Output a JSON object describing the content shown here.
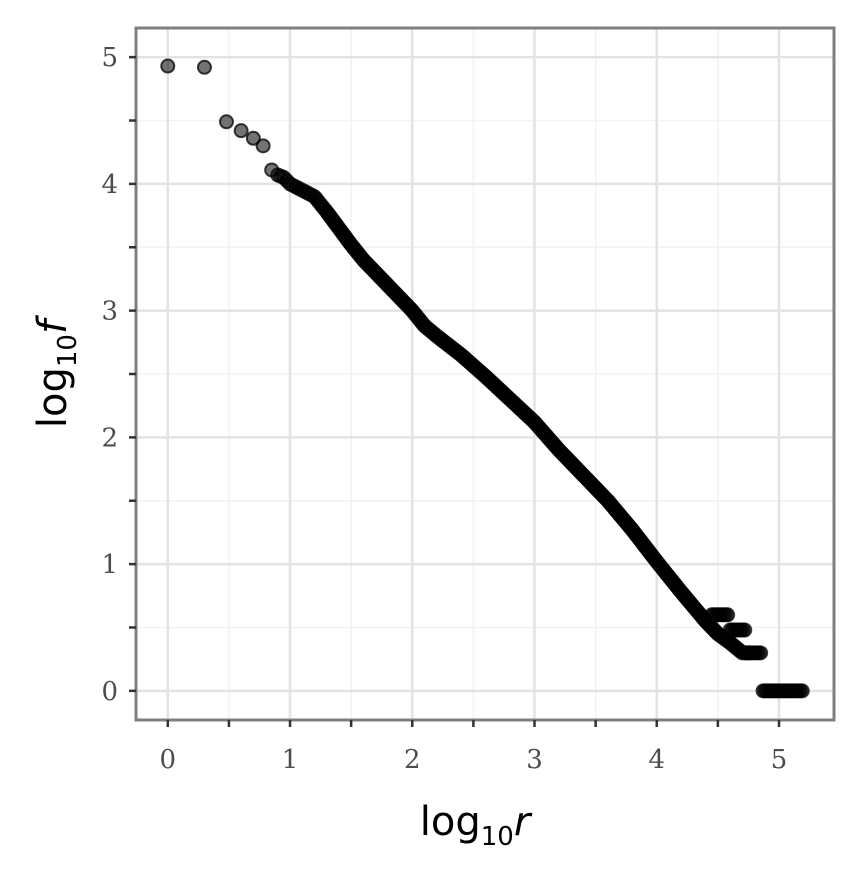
{
  "chart_data": {
    "type": "scatter",
    "title": "",
    "xlabel": {
      "base": "log",
      "subscript": "10",
      "variable": "r"
    },
    "ylabel": {
      "base": "log",
      "subscript": "10",
      "variable": "f"
    },
    "xlim": [
      -0.26,
      5.45
    ],
    "ylim": [
      -0.23,
      5.23
    ],
    "x_ticks": [
      0,
      1,
      2,
      3,
      4,
      5
    ],
    "y_ticks": [
      0,
      1,
      2,
      3,
      4,
      5
    ],
    "x_minor_ticks": [
      0.5,
      1.5,
      2.5,
      3.5,
      4.5
    ],
    "y_minor_ticks": [
      0.5,
      1.5,
      2.5,
      3.5,
      4.5
    ],
    "grid": true,
    "legend": "none",
    "point_color": "#000000",
    "point_opacity": 0.55,
    "key_points": [
      [
        0.0,
        4.93
      ],
      [
        0.3,
        4.92
      ],
      [
        0.48,
        4.49
      ],
      [
        0.6,
        4.42
      ],
      [
        0.7,
        4.36
      ],
      [
        0.78,
        4.3
      ],
      [
        0.85,
        4.11
      ],
      [
        0.9,
        4.07
      ],
      [
        0.95,
        4.05
      ],
      [
        1.0,
        4.0
      ],
      [
        1.1,
        3.95
      ],
      [
        1.2,
        3.9
      ],
      [
        1.3,
        3.78
      ],
      [
        1.4,
        3.65
      ],
      [
        1.5,
        3.52
      ],
      [
        1.6,
        3.4
      ],
      [
        1.7,
        3.3
      ],
      [
        1.8,
        3.2
      ],
      [
        1.9,
        3.1
      ],
      [
        2.0,
        3.0
      ],
      [
        2.1,
        2.88
      ],
      [
        2.2,
        2.8
      ],
      [
        2.4,
        2.65
      ],
      [
        2.6,
        2.48
      ],
      [
        2.8,
        2.3
      ],
      [
        3.0,
        2.12
      ],
      [
        3.2,
        1.9
      ],
      [
        3.4,
        1.7
      ],
      [
        3.6,
        1.5
      ],
      [
        3.8,
        1.27
      ],
      [
        4.0,
        1.02
      ],
      [
        4.2,
        0.78
      ],
      [
        4.4,
        0.55
      ],
      [
        4.5,
        0.45
      ],
      [
        4.6,
        0.38
      ],
      [
        4.7,
        0.3
      ],
      [
        4.78,
        0.3
      ],
      [
        4.8,
        0.0
      ],
      [
        5.0,
        0.0
      ],
      [
        5.2,
        0.0
      ]
    ],
    "steps": [
      {
        "y": 0.6,
        "x_start": 4.45,
        "x_end": 4.58
      },
      {
        "y": 0.48,
        "x_start": 4.6,
        "x_end": 4.72
      },
      {
        "y": 0.3,
        "x_start": 4.73,
        "x_end": 4.85
      },
      {
        "y": 0.0,
        "x_start": 4.87,
        "x_end": 5.19
      }
    ]
  }
}
